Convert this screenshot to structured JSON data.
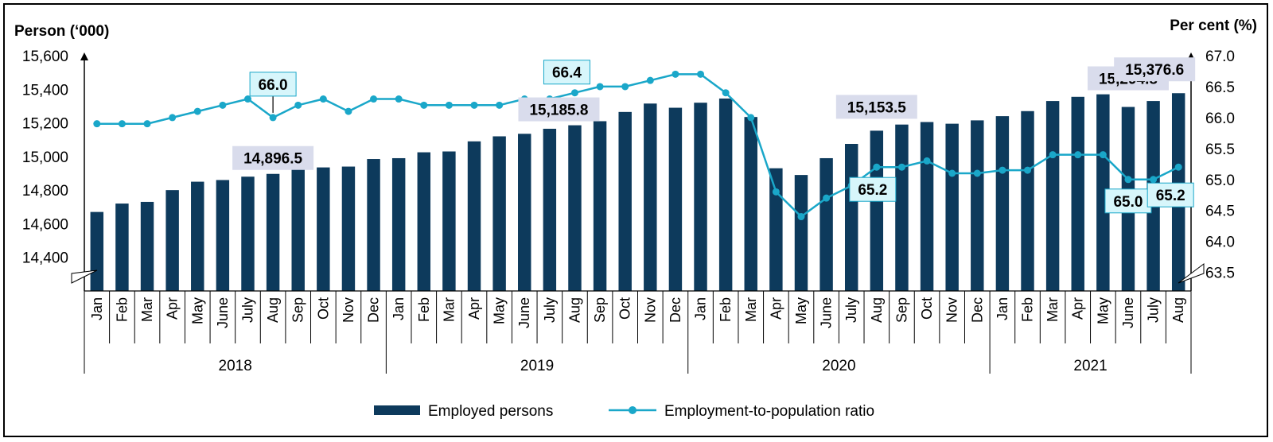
{
  "colors": {
    "bar": "#0d3a5c",
    "line": "#1aa7c9",
    "callout_bar_bg": "#d9dcec",
    "callout_line_bg": "#d7f6fb",
    "callout_line_border": "#1aa7c9"
  },
  "chart_data": {
    "type": "bar",
    "categories": [
      "Jan",
      "Feb",
      "Mar",
      "Apr",
      "May",
      "June",
      "July",
      "Aug",
      "Sep",
      "Oct",
      "Nov",
      "Dec",
      "Jan",
      "Feb",
      "Mar",
      "Apr",
      "May",
      "June",
      "July",
      "Aug",
      "Sep",
      "Oct",
      "Nov",
      "Dec",
      "Jan",
      "Feb",
      "Mar",
      "Apr",
      "May",
      "June",
      "July",
      "Aug",
      "Sep",
      "Oct",
      "Nov",
      "Dec",
      "Jan",
      "Feb",
      "Mar",
      "Apr",
      "May",
      "June",
      "July",
      "Aug"
    ],
    "years": [
      {
        "label": "2018",
        "start": 0,
        "count": 12
      },
      {
        "label": "2019",
        "start": 12,
        "count": 12
      },
      {
        "label": "2020",
        "start": 24,
        "count": 12
      },
      {
        "label": "2021",
        "start": 36,
        "count": 8
      }
    ],
    "series": [
      {
        "name": "Employed persons",
        "type": "bar",
        "axis": "left",
        "values": [
          14670,
          14720,
          14730,
          14800,
          14850,
          14860,
          14880,
          14896.5,
          14925,
          14935,
          14940,
          14985,
          14990,
          15025,
          15030,
          15090,
          15120,
          15135,
          15165,
          15185.8,
          15210,
          15265,
          15315,
          15290,
          15320,
          15345,
          15235,
          14930,
          14890,
          14990,
          15075,
          15153.5,
          15190,
          15205,
          15195,
          15215,
          15240,
          15270,
          15330,
          15355,
          15370,
          15294.8,
          15330,
          15376.6
        ]
      },
      {
        "name": "Employment-to-population ratio",
        "type": "line",
        "axis": "right",
        "values": [
          65.9,
          65.9,
          65.9,
          66.0,
          66.1,
          66.2,
          66.3,
          66.0,
          66.2,
          66.3,
          66.1,
          66.3,
          66.3,
          66.2,
          66.2,
          66.2,
          66.2,
          66.3,
          66.3,
          66.4,
          66.5,
          66.5,
          66.6,
          66.7,
          66.7,
          66.4,
          66.0,
          64.8,
          64.4,
          64.7,
          64.9,
          65.2,
          65.2,
          65.3,
          65.1,
          65.1,
          65.15,
          65.15,
          65.4,
          65.4,
          65.4,
          65.0,
          65.0,
          65.2
        ]
      }
    ],
    "ylabel_left": "Person (‘000)",
    "ylabel_right": "Per cent (%)",
    "ylim_left": [
      14200,
      15600
    ],
    "ylim_right": [
      63.2,
      67.0
    ],
    "yticks_left": [
      "15,600",
      "15,400",
      "15,200",
      "15,000",
      "14,800",
      "14,600",
      "14,400"
    ],
    "yticks_right": [
      "67.0",
      "66.5",
      "66.0",
      "65.5",
      "65.0",
      "64.5",
      "64.0",
      "63.5"
    ],
    "bar_callouts": [
      {
        "index": 7,
        "text": "14,896.5"
      },
      {
        "index": 19,
        "text": "15,185.8"
      },
      {
        "index": 31,
        "text": "15,153.5"
      },
      {
        "index": 41,
        "text": "15,294.8"
      },
      {
        "index": 43,
        "text": "15,376.6"
      }
    ],
    "line_callouts": [
      {
        "index": 7,
        "text": "66.0"
      },
      {
        "index": 19,
        "text": "66.4"
      },
      {
        "index": 31,
        "text": "65.2"
      },
      {
        "index": 41,
        "text": "65.0"
      },
      {
        "index": 43,
        "text": "65.2"
      }
    ],
    "legend": {
      "placement": "bottom-center",
      "items": [
        "Employed persons",
        "Employment-to-population ratio"
      ]
    },
    "grid": false
  }
}
